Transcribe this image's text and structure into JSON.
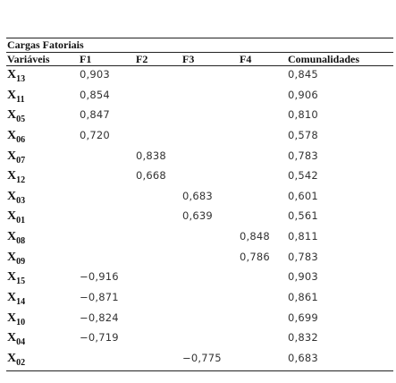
{
  "table": {
    "title": "Cargas Fatoriais",
    "headers": {
      "variables": "Variáveis",
      "f1": "F1",
      "f2": "F2",
      "f3": "F3",
      "f4": "F4",
      "communalities": "Comunalidades"
    },
    "rows": [
      {
        "var": "X",
        "sub": "13",
        "f1": "0,903",
        "f2": "",
        "f3": "",
        "f4": "",
        "com": "0,845"
      },
      {
        "var": "X",
        "sub": "11",
        "f1": "0,854",
        "f2": "",
        "f3": "",
        "f4": "",
        "com": "0,906"
      },
      {
        "var": "X",
        "sub": "05",
        "f1": "0,847",
        "f2": "",
        "f3": "",
        "f4": "",
        "com": "0,810"
      },
      {
        "var": "X",
        "sub": "06",
        "f1": "0,720",
        "f2": "",
        "f3": "",
        "f4": "",
        "com": "0,578"
      },
      {
        "var": "X",
        "sub": "07",
        "f1": "",
        "f2": "0,838",
        "f3": "",
        "f4": "",
        "com": "0,783"
      },
      {
        "var": "X",
        "sub": "12",
        "f1": "",
        "f2": "0,668",
        "f3": "",
        "f4": "",
        "com": "0,542"
      },
      {
        "var": "X",
        "sub": "03",
        "f1": "",
        "f2": "",
        "f3": "0,683",
        "f4": "",
        "com": "0,601"
      },
      {
        "var": "X",
        "sub": "01",
        "f1": "",
        "f2": "",
        "f3": "0,639",
        "f4": "",
        "com": "0,561"
      },
      {
        "var": "X",
        "sub": "08",
        "f1": "",
        "f2": "",
        "f3": "",
        "f4": "0,848",
        "com": "0,811"
      },
      {
        "var": "X",
        "sub": "09",
        "f1": "",
        "f2": "",
        "f3": "",
        "f4": "0,786",
        "com": "0,783"
      },
      {
        "var": "X",
        "sub": "15",
        "f1": "−0,916",
        "f2": "",
        "f3": "",
        "f4": "",
        "com": "0,903"
      },
      {
        "var": "X",
        "sub": "14",
        "f1": "−0,871",
        "f2": "",
        "f3": "",
        "f4": "",
        "com": "0,861"
      },
      {
        "var": "X",
        "sub": "10",
        "f1": "−0,824",
        "f2": "",
        "f3": "",
        "f4": "",
        "com": "0,699"
      },
      {
        "var": "X",
        "sub": "04",
        "f1": "−0,719",
        "f2": "",
        "f3": "",
        "f4": "",
        "com": "0,832"
      },
      {
        "var": "X",
        "sub": "02",
        "f1": "",
        "f2": "",
        "f3": "−0,775",
        "f4": "",
        "com": "0,683"
      }
    ]
  }
}
